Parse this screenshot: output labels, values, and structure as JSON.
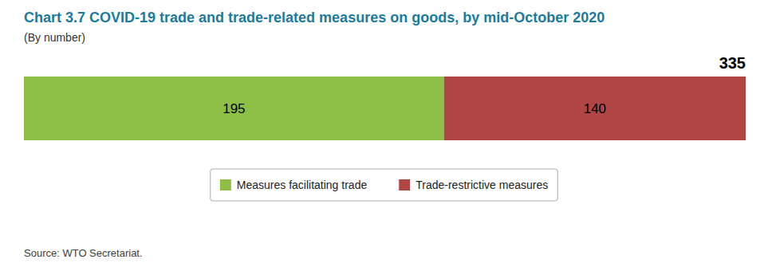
{
  "chart_data": {
    "type": "bar",
    "orientation": "horizontal",
    "stacked": true,
    "title": "Chart 3.7 COVID-19 trade and trade-related measures on goods, by mid-October 2020",
    "subtitle": "(By number)",
    "annotations": [
      "335"
    ],
    "source": "Source: WTO Secretariat.",
    "series": [
      {
        "name": "Measures facilitating trade",
        "color": "#8DBE45",
        "values": [
          195
        ]
      },
      {
        "name": "Trade-restrictive measures",
        "color": "#B04545",
        "values": [
          140
        ]
      }
    ],
    "xlim": [
      0,
      335
    ],
    "tick_labels": false,
    "data_labels": true,
    "legend": "bottom"
  }
}
